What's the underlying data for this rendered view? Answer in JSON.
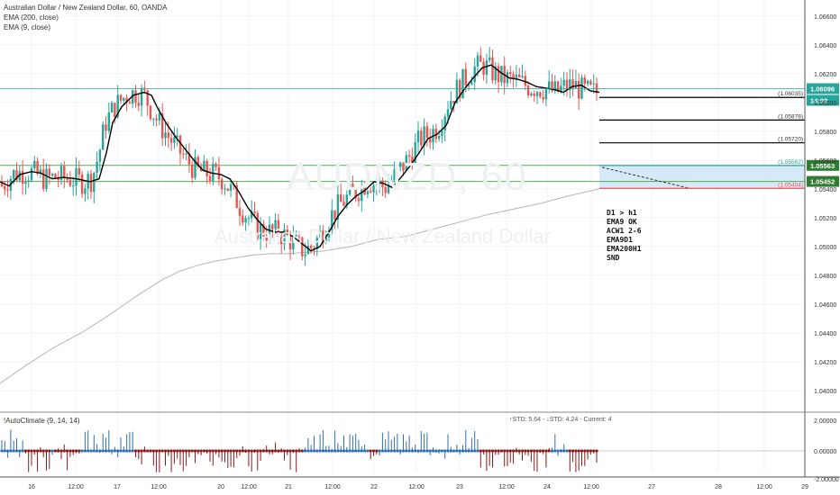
{
  "legend": {
    "title": "Australian Dollar / New Zealand Dollar, 60, OANDA",
    "ema200": "EMA (200, close)",
    "ema9": "EMA (9, close)"
  },
  "watermark": {
    "symbol": "AUDNZD, 60",
    "description": "Australian Dollar / New Zealand Dollar"
  },
  "notes": [
    "D1 > h1",
    "EMA9 OK",
    "ACW1 2-6",
    "",
    "EMA9D1",
    "EMA200H1",
    "SND"
  ],
  "indicator": {
    "name": "!AutoClimate (9, 14, 14)",
    "stats": "↑STD: 5.64 - ↓STD: 4.24 - Current: 4",
    "axis_labels": [
      "2.00000",
      "0.00000",
      "-2.00000"
    ]
  },
  "colors": {
    "up": "#26a69a",
    "down": "#ef5350",
    "ema9": "#000000",
    "ema200": "#b2b5be",
    "level_line": "#000000",
    "green_zone": "#4caf50",
    "zone_fill": "#d6e9f8",
    "price_tag": "#26a69a",
    "hist_pos": "#2f6fb0",
    "hist_neg": "#8b1a1a"
  },
  "chart_data": {
    "type": "candlestick",
    "title": "Australian Dollar / New Zealand Dollar, 60, OANDA",
    "y_ticks": [
      "1.06600",
      "1.06400",
      "1.06200",
      "1.06000",
      "1.05800",
      "1.05600",
      "1.05400",
      "1.05200",
      "1.05000",
      "1.04800",
      "1.04600",
      "1.04400",
      "1.04200",
      "1.04000"
    ],
    "ylim": [
      1.0385,
      1.0668
    ],
    "x_ticks": [
      "16",
      "12:00",
      "17",
      "12:00",
      "20",
      "12:00",
      "21",
      "12:00",
      "22",
      "12:00",
      "23",
      "12:00",
      "24",
      "12:00",
      "27",
      "28",
      "12:00",
      "29"
    ],
    "current_price": "1.06096",
    "countdown": "14:02",
    "levels": [
      {
        "label": "1.06035",
        "value": 1.06035,
        "color": "#000000"
      },
      {
        "label": "1.05878",
        "value": 1.05878,
        "color": "#000000"
      },
      {
        "label": "1.05720",
        "value": 1.0572,
        "color": "#000000"
      },
      {
        "label": "1.05562",
        "value": 1.05562,
        "color": "#26a69a"
      },
      {
        "label": "1.05404",
        "value": 1.05404,
        "color": "#ef5350"
      }
    ],
    "zone_tags": [
      {
        "label": "1.05563",
        "value": 1.05563
      },
      {
        "label": "1.05452",
        "value": 1.05452
      }
    ],
    "ema9_path": [
      [
        0,
        1.0545
      ],
      [
        10,
        1.0542
      ],
      [
        22,
        1.055
      ],
      [
        35,
        1.0552
      ],
      [
        45,
        1.0551
      ],
      [
        58,
        1.0547
      ],
      [
        70,
        1.0548
      ],
      [
        85,
        1.0547
      ],
      [
        100,
        1.0545
      ],
      [
        110,
        1.0547
      ],
      [
        118,
        1.0565
      ],
      [
        125,
        1.0586
      ],
      [
        135,
        1.0597
      ],
      [
        148,
        1.0605
      ],
      [
        160,
        1.0607
      ],
      [
        168,
        1.0605
      ],
      [
        175,
        1.0596
      ],
      [
        185,
        1.0585
      ],
      [
        195,
        1.0576
      ],
      [
        205,
        1.0568
      ],
      [
        215,
        1.056
      ],
      [
        225,
        1.0553
      ],
      [
        235,
        1.0551
      ],
      [
        245,
        1.055
      ],
      [
        255,
        1.0547
      ],
      [
        265,
        1.0538
      ],
      [
        275,
        1.0527
      ],
      [
        285,
        1.0519
      ],
      [
        295,
        1.0512
      ],
      [
        305,
        1.051
      ],
      [
        315,
        1.051
      ],
      [
        325,
        1.0507
      ],
      [
        335,
        1.0502
      ],
      [
        345,
        1.0497
      ],
      [
        355,
        1.05
      ],
      [
        365,
        1.051
      ],
      [
        375,
        1.0521
      ],
      [
        385,
        1.0529
      ],
      [
        395,
        1.0535
      ],
      [
        405,
        1.0539
      ],
      [
        415,
        1.0545
      ],
      [
        425,
        1.0544
      ],
      [
        435,
        1.0541
      ],
      [
        445,
        1.0548
      ],
      [
        455,
        1.0556
      ],
      [
        465,
        1.0565
      ],
      [
        475,
        1.0575
      ],
      [
        485,
        1.0578
      ],
      [
        495,
        1.0584
      ],
      [
        505,
        1.06
      ],
      [
        515,
        1.0609
      ],
      [
        525,
        1.0617
      ],
      [
        535,
        1.0624
      ],
      [
        545,
        1.0626
      ],
      [
        555,
        1.0621
      ],
      [
        565,
        1.0617
      ],
      [
        575,
        1.0616
      ],
      [
        585,
        1.0614
      ],
      [
        595,
        1.0611
      ],
      [
        605,
        1.061
      ],
      [
        615,
        1.0609
      ],
      [
        625,
        1.0607
      ],
      [
        635,
        1.0611
      ],
      [
        645,
        1.0612
      ],
      [
        655,
        1.0608
      ],
      [
        665,
        1.0607
      ]
    ],
    "ema200_path": [
      [
        0,
        1.0405
      ],
      [
        30,
        1.0418
      ],
      [
        60,
        1.043
      ],
      [
        90,
        1.044
      ],
      [
        120,
        1.0452
      ],
      [
        150,
        1.0465
      ],
      [
        180,
        1.0477
      ],
      [
        200,
        1.0483
      ],
      [
        220,
        1.0487
      ],
      [
        240,
        1.049
      ],
      [
        260,
        1.0492
      ],
      [
        280,
        1.0494
      ],
      [
        300,
        1.0495
      ],
      [
        320,
        1.0495
      ],
      [
        340,
        1.0496
      ],
      [
        360,
        1.0497
      ],
      [
        390,
        1.05
      ],
      [
        420,
        1.0505
      ],
      [
        450,
        1.0507
      ],
      [
        480,
        1.0512
      ],
      [
        510,
        1.0517
      ],
      [
        540,
        1.0522
      ],
      [
        570,
        1.0526
      ],
      [
        600,
        1.053
      ],
      [
        630,
        1.0535
      ],
      [
        665,
        1.054
      ]
    ]
  }
}
